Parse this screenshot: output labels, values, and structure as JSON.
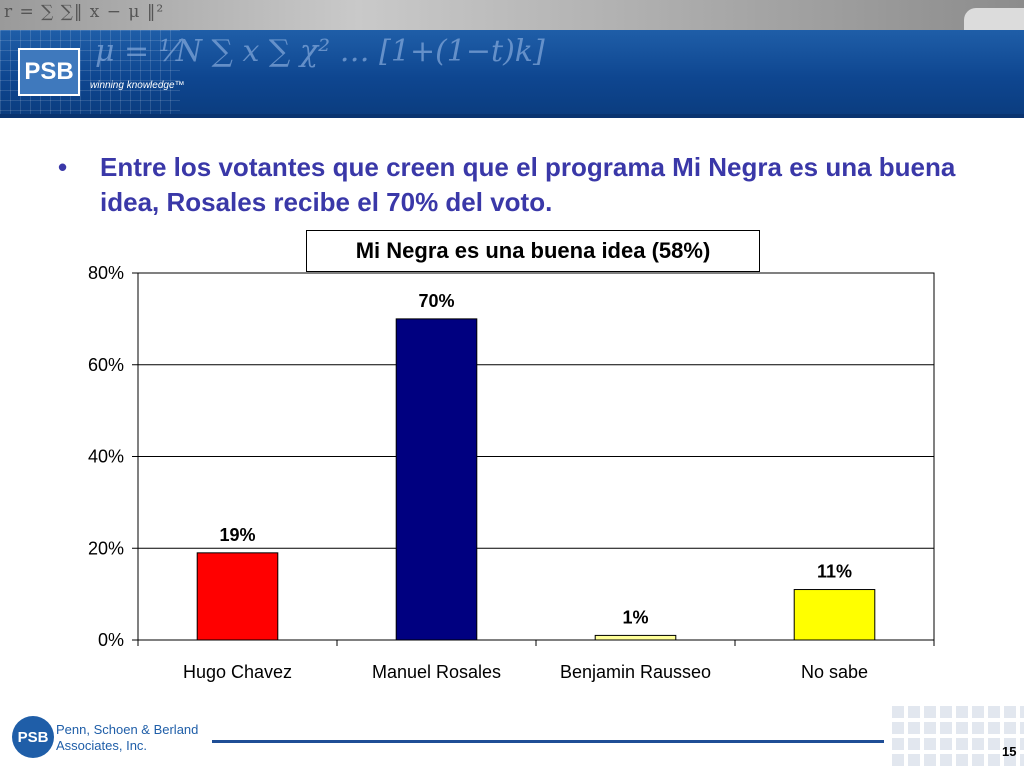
{
  "header": {
    "logo_text": "PSB",
    "tagline": "winning knowledge™",
    "strip_formula": "r = ∑ ∑‖ x − μ ‖²",
    "banner_formula": "μ = ⅟N ∑ x   ∑ χ² …  [1+(1−t)k]"
  },
  "slide": {
    "bullet": "•",
    "headline": "Entre los votantes que creen que el programa Mi Negra es una buena idea, Rosales recibe el 70% del voto."
  },
  "chart_data": {
    "type": "bar",
    "title": "Mi Negra es una buena idea (58%)",
    "categories": [
      "Hugo Chavez",
      "Manuel Rosales",
      "Benjamin Rausseo",
      "No sabe"
    ],
    "values": [
      19,
      70,
      1,
      11
    ],
    "value_labels": [
      "19%",
      "70%",
      "1%",
      "11%"
    ],
    "colors": [
      "#ff0000",
      "#000080",
      "#ffff99",
      "#ffff00"
    ],
    "ylim": [
      0,
      80
    ],
    "yticks": [
      0,
      20,
      40,
      60,
      80
    ],
    "ytick_labels": [
      "0%",
      "20%",
      "40%",
      "60%",
      "80%"
    ],
    "grid": true,
    "legend": false
  },
  "footer": {
    "logo_text": "PSB",
    "company_line1": "Penn, Schoen & Berland",
    "company_line2": "Associates, Inc.",
    "page_number": "15"
  }
}
